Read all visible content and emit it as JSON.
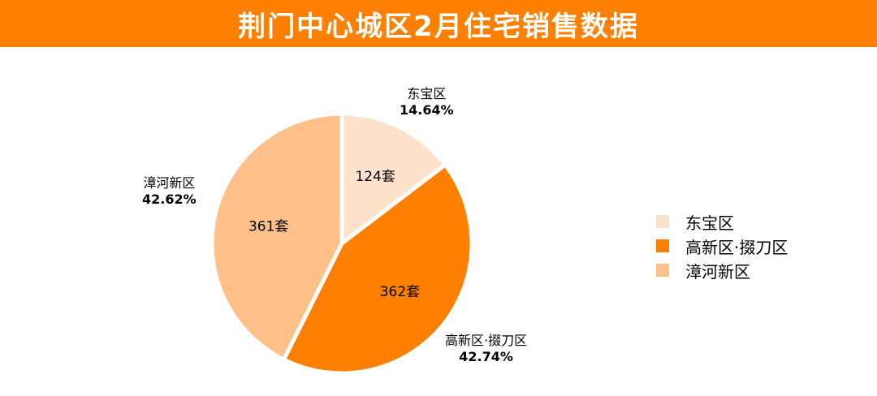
{
  "title": "荆门中心城区2月住宅销售数据",
  "colors": {
    "header": "#ff8000"
  },
  "chart_data": {
    "type": "pie",
    "categories": [
      "东宝区",
      "高新区·掇刀区",
      "漳河新区"
    ],
    "values": [
      124,
      362,
      361
    ],
    "value_labels": [
      "124套",
      "362套",
      "361套"
    ],
    "percents": [
      "14.64%",
      "42.74%",
      "42.62%"
    ],
    "colors": [
      "#ffe2cc",
      "#ff8000",
      "#ffc08a"
    ],
    "legend_position": "right"
  }
}
